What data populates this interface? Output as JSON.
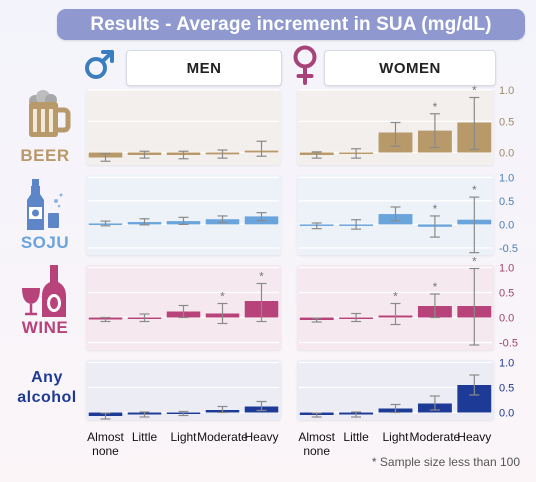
{
  "title": "Results - Average increment in SUA (mg/dL)",
  "genders": [
    "MEN",
    "WOMEN"
  ],
  "footnote": "* Sample size less than 100",
  "icons": {
    "male": "male-symbol-icon",
    "female": "female-symbol-icon",
    "beer": "beer-mug-icon",
    "soju": "soju-bottle-icon",
    "wine": "wine-bottle-icon"
  },
  "chart_data": {
    "type": "bar",
    "categories": [
      "Almost none",
      "Little",
      "Light",
      "Moderate",
      "Heavy"
    ],
    "category_lines": [
      [
        "Almost",
        "none"
      ],
      [
        "Little"
      ],
      [
        "Light"
      ],
      [
        "Moderate"
      ],
      [
        "Heavy"
      ]
    ],
    "rows": [
      {
        "label": "BEER",
        "color": "#b8996a",
        "panel_bg": "#f2efec",
        "axis_color": "#a08a68",
        "ylim": [
          -0.2,
          1.0
        ],
        "ticks": [
          0.0,
          0.5,
          1.0
        ],
        "tick_labels": [
          "0.0",
          "0.5",
          "1.0"
        ],
        "men": {
          "values": [
            -0.08,
            -0.04,
            -0.04,
            -0.03,
            0.03
          ],
          "lo": [
            -0.14,
            -0.09,
            -0.1,
            -0.09,
            -0.06
          ],
          "hi": [
            -0.02,
            0.02,
            0.02,
            0.04,
            0.18
          ],
          "star": [
            false,
            false,
            false,
            false,
            false
          ]
        },
        "women": {
          "values": [
            -0.04,
            -0.02,
            0.32,
            0.35,
            0.48
          ],
          "lo": [
            -0.09,
            -0.09,
            0.1,
            0.08,
            0.05
          ],
          "hi": [
            0.01,
            0.06,
            0.48,
            0.62,
            0.88
          ],
          "star": [
            false,
            false,
            false,
            true,
            true
          ]
        }
      },
      {
        "label": "SOJU",
        "color": "#6aa4dd",
        "panel_bg": "#edf2f8",
        "axis_color": "#4c80b7",
        "ylim": [
          -0.65,
          1.05
        ],
        "ticks": [
          -0.5,
          0.0,
          0.5,
          1.0
        ],
        "tick_labels": [
          "-0.5",
          "0.0",
          "0.5",
          "1.0"
        ],
        "men": {
          "values": [
            0.02,
            0.05,
            0.07,
            0.11,
            0.17
          ],
          "lo": [
            -0.03,
            -0.01,
            0.0,
            0.04,
            0.08
          ],
          "hi": [
            0.07,
            0.12,
            0.15,
            0.18,
            0.25
          ],
          "star": [
            false,
            false,
            false,
            false,
            false
          ]
        },
        "women": {
          "values": [
            -0.03,
            -0.02,
            0.22,
            -0.05,
            0.1
          ],
          "lo": [
            -0.09,
            -0.1,
            0.08,
            -0.27,
            -0.6
          ],
          "hi": [
            0.03,
            0.1,
            0.37,
            0.18,
            0.58
          ],
          "star": [
            false,
            false,
            false,
            true,
            true
          ]
        }
      },
      {
        "label": "WINE",
        "color": "#b8427a",
        "panel_bg": "#f5e9ef",
        "axis_color": "#a3456f",
        "ylim": [
          -0.65,
          1.05
        ],
        "ticks": [
          -0.5,
          0.0,
          0.5,
          1.0
        ],
        "tick_labels": [
          "-0.5",
          "0.0",
          "0.5",
          "1.0"
        ],
        "men": {
          "values": [
            -0.04,
            -0.02,
            0.12,
            0.08,
            0.33
          ],
          "lo": [
            -0.08,
            -0.08,
            0.0,
            -0.12,
            -0.08
          ],
          "hi": [
            0.0,
            0.07,
            0.24,
            0.28,
            0.68
          ],
          "star": [
            false,
            false,
            false,
            true,
            true
          ]
        },
        "women": {
          "values": [
            -0.05,
            -0.01,
            0.04,
            0.23,
            0.23
          ],
          "lo": [
            -0.09,
            -0.08,
            -0.14,
            0.0,
            -0.55
          ],
          "hi": [
            -0.01,
            0.08,
            0.28,
            0.47,
            0.98
          ],
          "star": [
            false,
            false,
            true,
            true,
            true
          ]
        }
      },
      {
        "label": "Any alcohol",
        "color": "#1d3a96",
        "panel_bg": "#ecedf4",
        "axis_color": "#1d3a96",
        "ylim": [
          -0.15,
          1.05
        ],
        "ticks": [
          0.0,
          0.5,
          1.0
        ],
        "tick_labels": [
          "0.0",
          "0.5",
          "1.0"
        ],
        "men": {
          "values": [
            -0.07,
            -0.04,
            -0.02,
            0.05,
            0.12
          ],
          "lo": [
            -0.13,
            -0.09,
            -0.06,
            0.0,
            0.04
          ],
          "hi": [
            -0.01,
            0.01,
            0.02,
            0.12,
            0.22
          ],
          "star": [
            false,
            false,
            false,
            false,
            false
          ]
        },
        "women": {
          "values": [
            -0.05,
            -0.04,
            0.08,
            0.18,
            0.55
          ],
          "lo": [
            -0.09,
            -0.09,
            0.0,
            0.05,
            0.35
          ],
          "hi": [
            -0.01,
            0.01,
            0.16,
            0.33,
            0.75
          ],
          "star": [
            false,
            false,
            false,
            false,
            false
          ]
        }
      }
    ]
  }
}
